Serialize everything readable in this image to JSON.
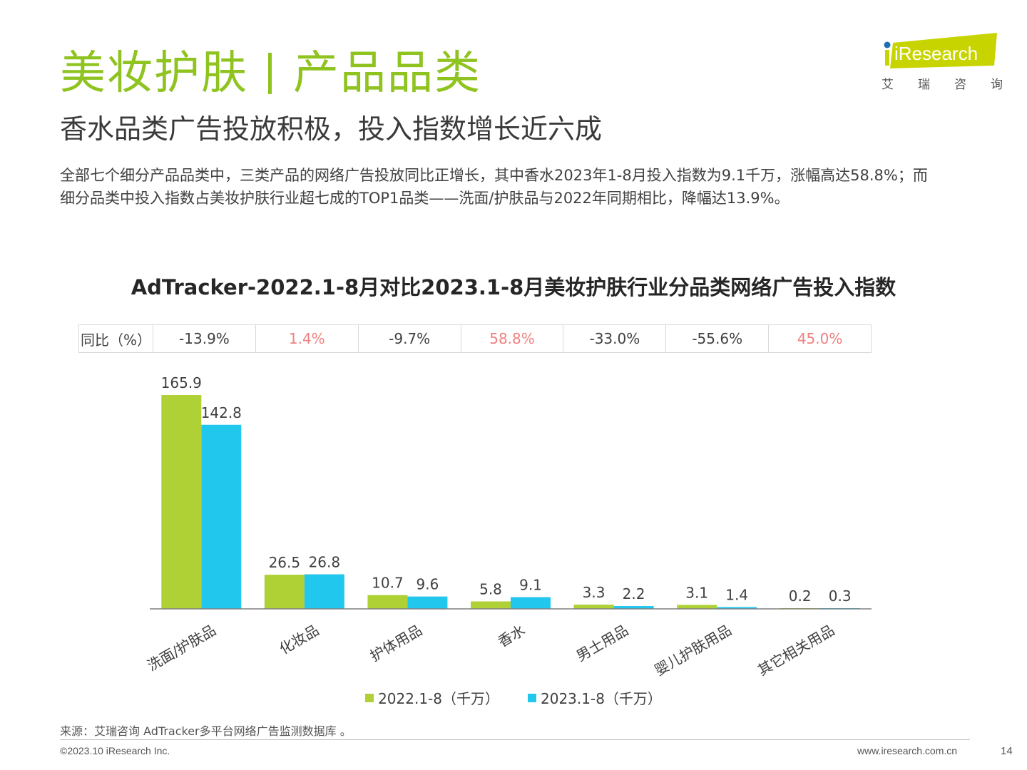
{
  "header": {
    "title_left": "美妆护肤",
    "title_right": "产品品类",
    "subtitle": "香水品类广告投放积极，投入指数增长近六成",
    "summary_line1": "全部七个细分产品品类中，三类产品的网络广告投放同比正增长，其中香水2023年1-8月投入指数为9.1千万，涨幅高达58.8%；而",
    "summary_line2": "细分品类中投入指数占美妆护肤行业超七成的TOP1品类——洗面/护肤品与2022年同期相比，降幅达13.9%。"
  },
  "logo": {
    "text": "iResearch",
    "chars": [
      "艾",
      "瑞",
      "咨",
      "询"
    ]
  },
  "table": {
    "label": "同比（%）",
    "values": [
      "-13.9%",
      "1.4%",
      "-9.7%",
      "58.8%",
      "-33.0%",
      "-55.6%",
      "45.0%"
    ]
  },
  "colors": {
    "accent_green": "#8fc31f",
    "series_2022": "#afd136",
    "series_2023": "#22c7ee",
    "positive_text": "#f08080",
    "negative_text": "#404040",
    "axis": "#808080"
  },
  "chart_data": {
    "type": "bar",
    "title": "AdTracker-2022.1-8月对比2023.1-8月美妆护肤行业分品类网络广告投入指数",
    "categories": [
      "洗面/护肤品",
      "化妆品",
      "护体用品",
      "香水",
      "男士用品",
      "婴儿护肤用品",
      "其它相关用品"
    ],
    "series": [
      {
        "name": "2022.1-8（千万）",
        "values": [
          165.9,
          26.5,
          10.7,
          5.8,
          3.3,
          3.1,
          0.2
        ]
      },
      {
        "name": "2023.1-8（千万）",
        "values": [
          142.8,
          26.8,
          9.6,
          9.1,
          2.2,
          1.4,
          0.3
        ]
      }
    ],
    "xlabel": "",
    "ylabel": "",
    "ylim": [
      0,
      170
    ],
    "grid": false,
    "legend": "bottom"
  },
  "footer": {
    "source": "来源：艾瑞咨询 AdTracker多平台网络广告监测数据库 。",
    "copyright": "©2023.10 iResearch Inc.",
    "website": "www.iresearch.com.cn",
    "page": "14"
  }
}
